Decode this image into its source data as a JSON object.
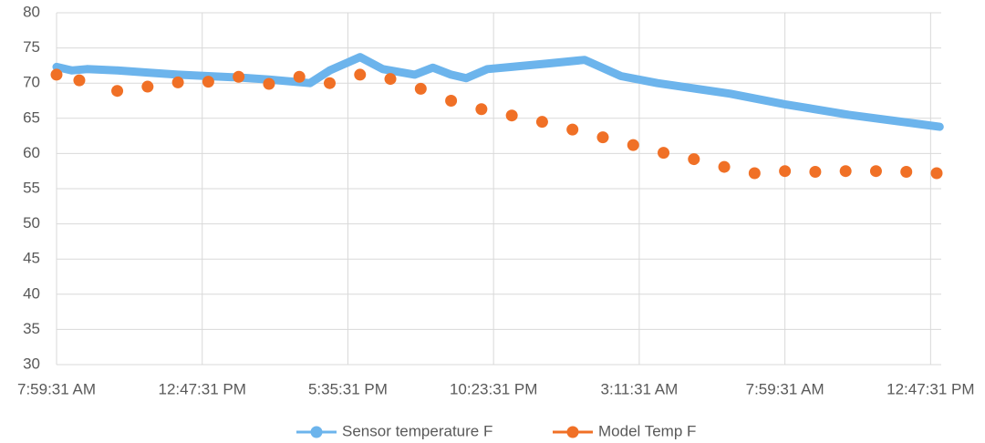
{
  "chart_data": {
    "type": "line",
    "x_unit": "hours",
    "xlim": [
      0,
      29.15
    ],
    "xticks": [
      {
        "value": 0,
        "label": "7:59:31 AM"
      },
      {
        "value": 4.8,
        "label": "12:47:31 PM"
      },
      {
        "value": 9.6,
        "label": "5:35:31 PM"
      },
      {
        "value": 14.4,
        "label": "10:23:31 PM"
      },
      {
        "value": 19.2,
        "label": "3:11:31 AM"
      },
      {
        "value": 24,
        "label": "7:59:31 AM"
      },
      {
        "value": 28.8,
        "label": "12:47:31 PM"
      }
    ],
    "ylim": [
      30,
      80
    ],
    "yticks": [
      30,
      35,
      40,
      45,
      50,
      55,
      60,
      65,
      70,
      75,
      80
    ],
    "grid": true,
    "legend": "bottom",
    "series": [
      {
        "name": "Sensor temperature F",
        "color": "#6cb4ec",
        "style": "line",
        "x": [
          0,
          0.5,
          1,
          2,
          3,
          4,
          5,
          6,
          7,
          8.35,
          9,
          10,
          10.75,
          11.8,
          12.4,
          13,
          13.5,
          14.2,
          15,
          16.2,
          17.4,
          18.6,
          19.8,
          22.2,
          24,
          26.1,
          29.1
        ],
        "values": [
          72.3,
          71.8,
          72,
          71.8,
          71.5,
          71.2,
          71,
          70.8,
          70.5,
          70,
          71.8,
          73.7,
          72,
          71.2,
          72.2,
          71.2,
          70.7,
          72,
          72.3,
          72.8,
          73.3,
          71,
          70,
          68.5,
          67,
          65.5,
          63.8
        ]
      },
      {
        "name": "Model Temp F",
        "color": "#f07026",
        "style": "dots",
        "x": [
          0,
          0.75,
          2,
          3,
          4,
          5,
          6,
          7,
          8,
          9,
          10,
          11,
          12,
          13,
          14,
          15,
          16,
          17,
          18,
          19,
          20,
          21,
          22,
          23,
          24,
          25,
          26,
          27,
          28,
          29
        ],
        "values": [
          71.2,
          70.4,
          68.9,
          69.5,
          70.1,
          70.2,
          70.9,
          69.9,
          70.9,
          70,
          71.2,
          70.6,
          69.2,
          67.5,
          66.3,
          65.4,
          64.5,
          63.4,
          62.3,
          61.2,
          60.1,
          59.2,
          58.1,
          57.2,
          57.5,
          57.4,
          57.5,
          57.5,
          57.4,
          57.2
        ]
      }
    ]
  }
}
